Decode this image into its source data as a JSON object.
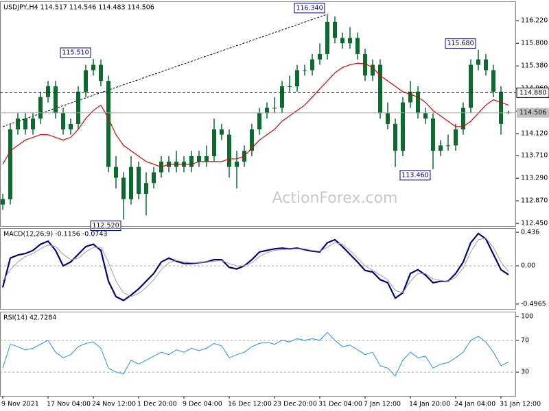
{
  "chart_data": [
    {
      "type": "candlestick",
      "title": "USDJPY,H4  114.517 114.546 114.483 114.506",
      "watermark": "ActionForex.com",
      "color": "#0b6b2f",
      "ma_color": "#e00000",
      "categories": [
        "9 Nov 2021",
        null,
        null,
        null,
        null,
        null,
        "17 Nov 04:00",
        null,
        null,
        null,
        null,
        null,
        "24 Nov 12:00",
        null,
        null,
        null,
        null,
        null,
        "1 Dec 20:00",
        null,
        null,
        null,
        null,
        null,
        "9 Dec 04:00",
        null,
        null,
        null,
        null,
        null,
        "16 Dec 12:00",
        null,
        null,
        null,
        null,
        null,
        "23 Dec 20:00",
        null,
        null,
        null,
        null,
        null,
        "31 Dec 04:00",
        null,
        null,
        null,
        null,
        null,
        "7 Jan 12:00",
        null,
        null,
        null,
        null,
        null,
        "14 Jan 20:00",
        null,
        null,
        null,
        null,
        null,
        "24 Jan 04:00",
        null,
        null,
        null,
        null,
        null,
        "31 Jan 12:00",
        null
      ],
      "open": [
        112.8,
        112.9,
        114.2,
        114.4,
        114.2,
        114.4,
        114.8,
        115.0,
        114.5,
        114.2,
        114.3,
        114.9,
        115.3,
        115.4,
        115.1,
        113.5,
        113.3,
        112.9,
        113.5,
        113.0,
        113.2,
        113.4,
        113.6,
        113.5,
        113.6,
        113.5,
        113.7,
        113.6,
        113.7,
        114.2,
        114.1,
        113.5,
        113.6,
        113.8,
        114.2,
        114.5,
        114.6,
        114.6,
        115.0,
        115.0,
        115.3,
        115.3,
        115.5,
        115.6,
        116.2,
        115.9,
        115.8,
        115.9,
        115.6,
        115.2,
        115.4,
        114.5,
        114.3,
        113.8,
        114.7,
        114.9,
        114.5,
        114.4,
        113.8,
        113.9,
        113.9,
        114.2,
        114.6,
        115.4,
        115.5,
        115.3,
        114.9,
        114.517
      ],
      "high": [
        113.0,
        114.3,
        114.5,
        114.5,
        114.5,
        114.9,
        115.1,
        115.1,
        114.6,
        114.4,
        115.0,
        115.4,
        115.51,
        115.5,
        115.2,
        113.7,
        113.4,
        113.7,
        113.6,
        113.4,
        113.5,
        113.7,
        113.7,
        113.8,
        113.7,
        113.8,
        113.8,
        113.9,
        114.4,
        114.3,
        114.2,
        113.8,
        113.9,
        114.3,
        114.6,
        114.7,
        114.8,
        115.1,
        115.2,
        115.4,
        115.4,
        115.6,
        115.8,
        116.34,
        116.3,
        116.0,
        116.1,
        116.0,
        115.7,
        115.5,
        115.5,
        114.7,
        114.4,
        114.8,
        115.1,
        115.0,
        114.6,
        114.5,
        114.0,
        114.1,
        114.3,
        114.7,
        115.5,
        115.68,
        115.6,
        115.4,
        115.0,
        114.546
      ],
      "low": [
        112.7,
        112.8,
        114.1,
        114.1,
        114.1,
        114.3,
        114.7,
        114.4,
        114.1,
        114.1,
        114.2,
        114.8,
        115.2,
        115.0,
        113.4,
        113.1,
        112.52,
        112.8,
        112.9,
        112.6,
        113.1,
        113.3,
        113.4,
        113.4,
        113.4,
        113.4,
        113.5,
        113.5,
        113.6,
        114.0,
        113.3,
        113.1,
        113.5,
        113.7,
        114.1,
        114.4,
        114.5,
        114.5,
        114.9,
        114.9,
        115.2,
        115.2,
        115.4,
        115.5,
        115.8,
        115.7,
        115.7,
        115.5,
        115.1,
        115.1,
        114.4,
        114.2,
        113.5,
        113.7,
        114.6,
        114.4,
        114.3,
        113.46,
        113.7,
        113.8,
        113.8,
        114.1,
        114.5,
        115.3,
        115.2,
        114.8,
        114.1,
        114.483
      ],
      "close": [
        112.9,
        114.2,
        114.4,
        114.2,
        114.4,
        114.8,
        115.0,
        114.5,
        114.2,
        114.3,
        114.9,
        115.3,
        115.4,
        115.1,
        113.5,
        113.3,
        112.9,
        113.5,
        113.0,
        113.2,
        113.4,
        113.6,
        113.5,
        113.6,
        113.5,
        113.7,
        113.6,
        113.7,
        114.2,
        114.1,
        113.5,
        113.6,
        113.8,
        114.2,
        114.5,
        114.6,
        114.6,
        115.0,
        115.0,
        115.3,
        115.3,
        115.5,
        115.6,
        116.2,
        115.9,
        115.8,
        115.9,
        115.6,
        115.2,
        115.4,
        114.5,
        114.3,
        113.8,
        114.7,
        114.9,
        114.5,
        114.4,
        113.8,
        113.9,
        113.9,
        114.2,
        114.6,
        115.4,
        115.5,
        115.3,
        114.9,
        114.3,
        114.506
      ],
      "ma_values": [
        113.55,
        113.8,
        113.9,
        114.0,
        114.05,
        114.1,
        114.1,
        114.05,
        114.0,
        114.05,
        114.2,
        114.4,
        114.55,
        114.65,
        114.4,
        114.1,
        113.9,
        113.8,
        113.7,
        113.6,
        113.55,
        113.5,
        113.55,
        113.55,
        113.55,
        113.55,
        113.6,
        113.6,
        113.6,
        113.6,
        113.65,
        113.65,
        113.7,
        113.85,
        114.0,
        114.1,
        114.2,
        114.35,
        114.45,
        114.55,
        114.65,
        114.8,
        114.95,
        115.1,
        115.25,
        115.35,
        115.4,
        115.43,
        115.42,
        115.35,
        115.2,
        115.1,
        115.0,
        114.9,
        114.85,
        114.8,
        114.7,
        114.55,
        114.45,
        114.35,
        114.25,
        114.25,
        114.35,
        114.5,
        114.65,
        114.75,
        114.7,
        114.65
      ],
      "ylim": [
        112.4,
        116.58
      ],
      "yticks": [
        {
          "value": 116.22,
          "label": "116.220"
        },
        {
          "value": 115.8,
          "label": "115.800"
        },
        {
          "value": 115.38,
          "label": "115.380"
        },
        {
          "value": 114.96,
          "label": "114.960"
        },
        {
          "value": 114.54,
          "label": "114.540"
        },
        {
          "value": 114.12,
          "label": "114.120"
        },
        {
          "value": 113.71,
          "label": "113.710"
        },
        {
          "value": 113.29,
          "label": "113.290"
        },
        {
          "value": 112.87,
          "label": "112.870"
        },
        {
          "value": 112.45,
          "label": "112.450"
        }
      ],
      "hlines": [
        {
          "value": 114.88,
          "label": "114.880",
          "style": "dashed"
        },
        {
          "value": 114.506,
          "label": "114.506",
          "style": "solid"
        }
      ],
      "annotations": [
        {
          "value": 115.51,
          "label": "115.510"
        },
        {
          "value": 116.34,
          "label": "116.340"
        },
        {
          "value": 112.52,
          "label": "112.520"
        },
        {
          "value": 113.46,
          "label": "113.460"
        },
        {
          "value": 115.68,
          "label": "115.680"
        }
      ],
      "trendline": {
        "from": 114.25,
        "to": 116.34
      }
    },
    {
      "type": "line",
      "title": "MACD(12,26,9) -0.1156 -0.0743",
      "series": [
        {
          "color": "#000080",
          "values": [
            -0.28,
            0.1,
            0.14,
            0.16,
            0.2,
            0.28,
            0.32,
            0.2,
            0.0,
            0.05,
            0.15,
            0.25,
            0.28,
            0.2,
            -0.2,
            -0.4,
            -0.45,
            -0.38,
            -0.3,
            -0.2,
            -0.1,
            0.05,
            0.1,
            0.06,
            0.03,
            0.03,
            0.04,
            0.05,
            0.08,
            0.08,
            -0.02,
            -0.04,
            0.0,
            0.08,
            0.18,
            0.2,
            0.22,
            0.23,
            0.22,
            0.23,
            0.21,
            0.19,
            0.18,
            0.3,
            0.34,
            0.25,
            0.15,
            0.05,
            -0.06,
            -0.08,
            -0.18,
            -0.22,
            -0.42,
            -0.35,
            -0.1,
            -0.05,
            -0.12,
            -0.22,
            -0.2,
            -0.2,
            -0.1,
            0.05,
            0.3,
            0.42,
            0.35,
            0.15,
            -0.05,
            -0.1156
          ]
        },
        {
          "color": "#a0a0a0",
          "values": [
            -0.2,
            -0.05,
            0.05,
            0.12,
            0.16,
            0.22,
            0.27,
            0.25,
            0.15,
            0.08,
            0.1,
            0.18,
            0.24,
            0.24,
            0.05,
            -0.2,
            -0.35,
            -0.4,
            -0.36,
            -0.28,
            -0.18,
            -0.05,
            0.04,
            0.07,
            0.05,
            0.04,
            0.04,
            0.05,
            0.06,
            0.07,
            0.03,
            0.0,
            0.0,
            0.04,
            0.12,
            0.17,
            0.2,
            0.21,
            0.22,
            0.22,
            0.22,
            0.2,
            0.19,
            0.24,
            0.3,
            0.28,
            0.2,
            0.1,
            0.0,
            -0.06,
            -0.12,
            -0.18,
            -0.32,
            -0.35,
            -0.2,
            -0.1,
            -0.1,
            -0.17,
            -0.19,
            -0.2,
            -0.15,
            -0.03,
            0.18,
            0.34,
            0.36,
            0.24,
            0.05,
            -0.0743
          ]
        }
      ],
      "ylim": [
        -0.56,
        0.49
      ],
      "yticks": [
        0.436,
        {
          "value": 0,
          "label": "0.00"
        },
        -0.4965
      ],
      "levels": [
        0
      ]
    },
    {
      "type": "line",
      "title": "RSI(14) 42.7284",
      "series": [
        {
          "color": "#1e90ff",
          "values": [
            35,
            65,
            62,
            58,
            60,
            65,
            70,
            55,
            48,
            52,
            62,
            66,
            68,
            60,
            35,
            30,
            28,
            45,
            40,
            45,
            50,
            55,
            52,
            58,
            55,
            60,
            57,
            60,
            66,
            63,
            48,
            52,
            55,
            62,
            66,
            68,
            65,
            70,
            68,
            72,
            70,
            72,
            70,
            80,
            70,
            62,
            64,
            58,
            52,
            55,
            38,
            35,
            25,
            45,
            55,
            48,
            50,
            35,
            40,
            42,
            48,
            55,
            70,
            75,
            68,
            55,
            38,
            42.7284
          ]
        }
      ],
      "ylim": [
        0,
        106
      ],
      "yticks": [
        100,
        70,
        30
      ],
      "levels": [
        70,
        30
      ]
    }
  ]
}
